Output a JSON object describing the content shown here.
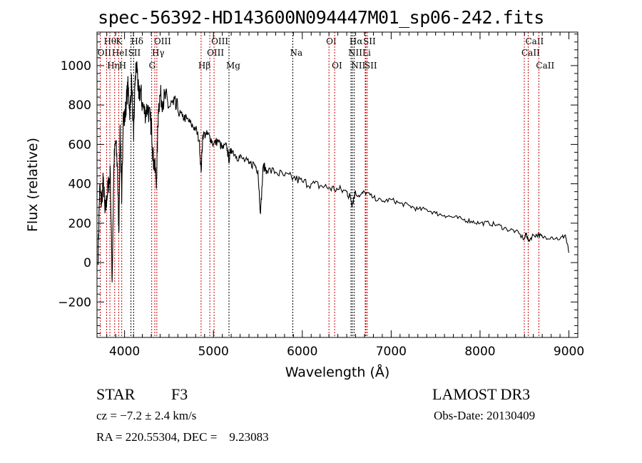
{
  "chart_data": {
    "type": "line",
    "title": "spec-56392-HD143600N094447M01_sp06-242.fits",
    "xlabel": "Wavelength (Å)",
    "ylabel": "Flux (relative)",
    "xlim": [
      3690,
      9100
    ],
    "ylim": [
      -380,
      1170
    ],
    "xticks": [
      4000,
      5000,
      6000,
      7000,
      8000,
      9000
    ],
    "xtick_labels": [
      "4000",
      "5000",
      "6000",
      "7000",
      "8000",
      "9000"
    ],
    "yticks": [
      -200,
      0,
      200,
      400,
      600,
      800,
      1000
    ],
    "ytick_labels": [
      "−200",
      "0",
      "200",
      "400",
      "600",
      "800",
      "1000"
    ],
    "grid": false,
    "series": [
      {
        "name": "spectrum",
        "x": [
          3700,
          3720,
          3740,
          3760,
          3780,
          3800,
          3820,
          3840,
          3860,
          3880,
          3900,
          3920,
          3935,
          3950,
          3968,
          3985,
          4000,
          4020,
          4040,
          4060,
          4080,
          4102,
          4120,
          4140,
          4160,
          4180,
          4200,
          4230,
          4260,
          4290,
          4305,
          4320,
          4340,
          4360,
          4380,
          4400,
          4430,
          4460,
          4500,
          4550,
          4600,
          4650,
          4700,
          4750,
          4800,
          4840,
          4861,
          4880,
          4920,
          4960,
          5000,
          5050,
          5100,
          5150,
          5175,
          5200,
          5260,
          5320,
          5400,
          5460,
          5500,
          5530,
          5560,
          5600,
          5700,
          5800,
          5900,
          6000,
          6100,
          6200,
          6300,
          6400,
          6500,
          6540,
          6563,
          6590,
          6650,
          6700,
          6800,
          6900,
          7000,
          7100,
          7200,
          7300,
          7400,
          7500,
          7600,
          7700,
          7800,
          7900,
          8000,
          8100,
          8200,
          8300,
          8400,
          8498,
          8520,
          8542,
          8600,
          8662,
          8700,
          8800,
          8900,
          8960,
          9000
        ],
        "y": [
          0,
          380,
          300,
          420,
          250,
          330,
          400,
          450,
          -100,
          500,
          620,
          480,
          150,
          700,
          300,
          760,
          720,
          820,
          900,
          760,
          930,
          620,
          950,
          1000,
          830,
          880,
          800,
          760,
          790,
          720,
          680,
          540,
          480,
          420,
          780,
          850,
          820,
          840,
          790,
          800,
          770,
          740,
          730,
          700,
          680,
          620,
          460,
          650,
          650,
          640,
          600,
          620,
          580,
          590,
          520,
          580,
          540,
          530,
          500,
          500,
          470,
          250,
          490,
          470,
          460,
          440,
          430,
          410,
          400,
          390,
          380,
          370,
          360,
          330,
          300,
          350,
          340,
          360,
          330,
          310,
          320,
          300,
          290,
          270,
          270,
          250,
          240,
          230,
          220,
          210,
          200,
          200,
          190,
          170,
          160,
          120,
          150,
          110,
          140,
          140,
          130,
          130,
          120,
          140,
          50
        ]
      }
    ],
    "lines": [
      {
        "label": "Hθ",
        "wl": 3798,
        "row": 0,
        "color": "#cc0000"
      },
      {
        "label": "K",
        "wl": 3934,
        "row": 0,
        "color": "#cc0000"
      },
      {
        "label": "Hδ",
        "wl": 4102,
        "row": 0,
        "color": "#000000"
      },
      {
        "label": "OIII",
        "wl": 4363,
        "row": 0,
        "color": "#cc0000"
      },
      {
        "label": "OIII",
        "wl": 5007,
        "row": 0,
        "color": "#cc0000"
      },
      {
        "label": "OI",
        "wl": 6300,
        "row": 0,
        "color": "#cc0000"
      },
      {
        "label": "Hα",
        "wl": 6563,
        "row": 0,
        "color": "#000000"
      },
      {
        "label": "SII",
        "wl": 6716,
        "row": 0,
        "color": "#cc0000"
      },
      {
        "label": "CaII",
        "wl": 8542,
        "row": 0,
        "color": "#cc0000"
      },
      {
        "label": "OII",
        "wl": 3727,
        "row": 1,
        "color": "#cc0000"
      },
      {
        "label": "HeI",
        "wl": 3889,
        "row": 1,
        "color": "#cc0000"
      },
      {
        "label": "SII",
        "wl": 4072,
        "row": 1,
        "color": "#000000"
      },
      {
        "label": "Hγ",
        "wl": 4340,
        "row": 1,
        "color": "#cc0000"
      },
      {
        "label": "OIII",
        "wl": 4959,
        "row": 1,
        "color": "#cc0000"
      },
      {
        "label": "Na",
        "wl": 5893,
        "row": 1,
        "color": "#000000"
      },
      {
        "label": "NII",
        "wl": 6548,
        "row": 1,
        "color": "#000000"
      },
      {
        "label": "Li",
        "wl": 6708,
        "row": 1,
        "color": "#cc0000"
      },
      {
        "label": "CaII",
        "wl": 8498,
        "row": 1,
        "color": "#cc0000"
      },
      {
        "label": "Hη",
        "wl": 3835,
        "row": 2,
        "color": "#cc0000"
      },
      {
        "label": "H",
        "wl": 3968,
        "row": 2,
        "color": "#cc0000"
      },
      {
        "label": "G",
        "wl": 4305,
        "row": 2,
        "color": "#cc0000"
      },
      {
        "label": "Hβ",
        "wl": 4861,
        "row": 2,
        "color": "#cc0000"
      },
      {
        "label": "Mg",
        "wl": 5175,
        "row": 2,
        "color": "#000000"
      },
      {
        "label": "OI",
        "wl": 6364,
        "row": 2,
        "color": "#cc0000"
      },
      {
        "label": "NII",
        "wl": 6583,
        "row": 2,
        "color": "#000000"
      },
      {
        "label": "SII",
        "wl": 6731,
        "row": 2,
        "color": "#cc0000"
      },
      {
        "label": "CaII",
        "wl": 8662,
        "row": 2,
        "color": "#cc0000"
      }
    ]
  },
  "info": {
    "object_class": "STAR",
    "subclass": "F3",
    "survey": "LAMOST DR3",
    "cz": "cz = −7.2 ± 2.4 km/s",
    "obs_date": "Obs-Date: 20130409",
    "coords": "RA = 220.55304, DEC =    9.23083"
  }
}
